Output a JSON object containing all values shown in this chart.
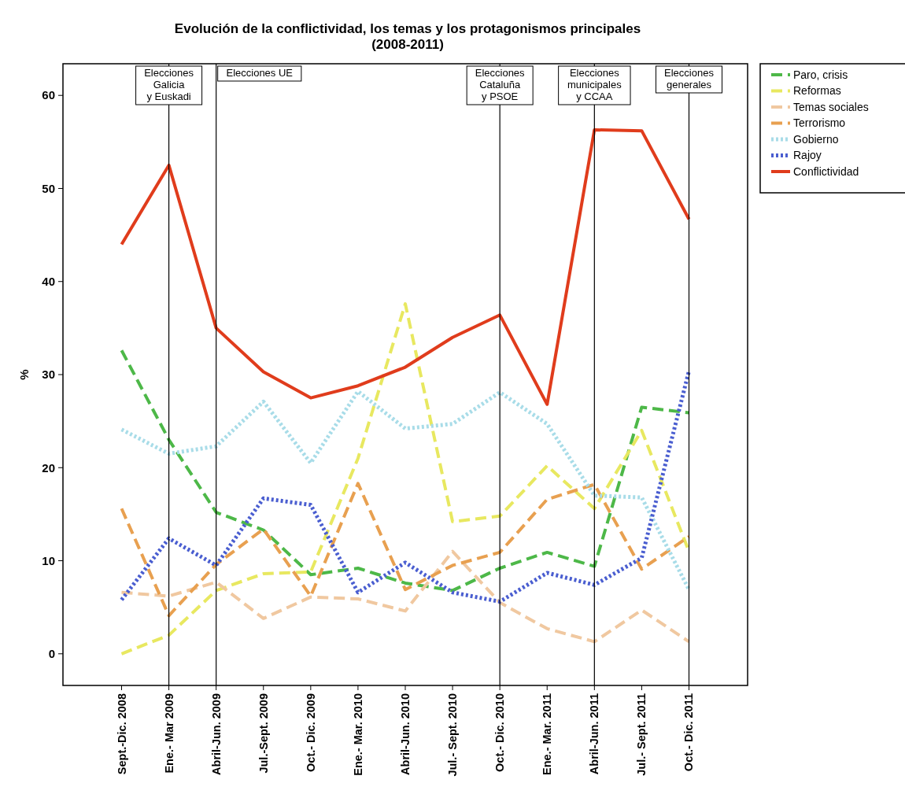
{
  "chart_data": {
    "type": "line",
    "title": "Evolución de la conflictividad, los temas y los protagonismos principales",
    "subtitle": "(2008-2011)",
    "ylabel": "%",
    "categories": [
      "Sept.-Dic. 2008",
      "Ene.- Mar 2009",
      "Abril-Jun. 2009",
      "Jul.-Sept. 2009",
      "Oct.- Dic. 2009",
      "Ene.- Mar. 2010",
      "Abril-Jun. 2010",
      "Jul.- Sept. 2010",
      "Oct.- Dic. 2010",
      "Ene.- Mar. 2011",
      "Abril-Jun. 2011",
      "Jul.- Sept. 2011",
      "Oct.- Dic. 2011"
    ],
    "ylim": [
      -3.4,
      63.4
    ],
    "yticks": [
      0,
      10,
      20,
      30,
      40,
      50,
      60
    ],
    "grid": false,
    "legend": "top right",
    "marker": "none",
    "series": [
      {
        "name": "Paro, crisis",
        "color": "#4db848",
        "line_style": "dashed",
        "values": [
          32.6,
          23,
          15.2,
          13.3,
          8.5,
          9.2,
          7.6,
          6.8,
          9.2,
          10.9,
          9.4,
          26.5,
          25.9
        ]
      },
      {
        "name": "Reformas",
        "color": "#e8e860",
        "line_style": "dashed",
        "values": [
          0,
          2,
          6.8,
          8.6,
          8.8,
          21,
          37.6,
          14.2,
          14.8,
          20.2,
          15.6,
          24,
          11
        ]
      },
      {
        "name": "Temas sociales",
        "color": "#f0c8a0",
        "line_style": "dashed",
        "values": [
          6.6,
          6.2,
          7.7,
          3.8,
          6.1,
          5.9,
          4.6,
          11,
          5.5,
          2.7,
          1.3,
          4.7,
          1.3
        ]
      },
      {
        "name": "Terrorismo",
        "color": "#e8a050",
        "line_style": "dashed",
        "values": [
          15.6,
          4.1,
          9.6,
          13.4,
          6.2,
          18.3,
          6.9,
          9.5,
          10.9,
          16.6,
          18.2,
          9.1,
          12.6
        ]
      },
      {
        "name": "Gobierno",
        "color": "#a8dce8",
        "line_style": "dotted",
        "values": [
          24.1,
          21.5,
          22.3,
          27.1,
          20.5,
          28.2,
          24.2,
          24.7,
          28.1,
          24.7,
          17,
          16.8,
          6.9
        ]
      },
      {
        "name": "Rajoy",
        "color": "#4a5ed0",
        "line_style": "dotted",
        "values": [
          5.8,
          12.4,
          9.5,
          16.7,
          16,
          6.6,
          9.8,
          6.6,
          5.6,
          8.7,
          7.4,
          10.3,
          30.4
        ]
      },
      {
        "name": "Conflictividad",
        "color": "#e03c1c",
        "line_style": "solid",
        "values": [
          44,
          52.5,
          35,
          30.3,
          27.5,
          28.8,
          30.8,
          34,
          36.4,
          26.8,
          56.3,
          56.2,
          46.7
        ]
      }
    ],
    "ref_lines": [
      {
        "axis": "x",
        "value": "Ene.- Mar 2009",
        "label": "Elecciones\nGalicia\ny Euskadi",
        "color": "#000000"
      },
      {
        "axis": "x",
        "value": "Abril-Jun. 2009",
        "label": "Elecciones UE",
        "color": "#000000"
      },
      {
        "axis": "x",
        "value": "Oct.- Dic. 2010",
        "label": "Elecciones\nCataluña\ny PSOE",
        "color": "#000000"
      },
      {
        "axis": "x",
        "value": "Abril-Jun. 2011",
        "label": "Elecciones\nmunicipales\ny CCAA",
        "color": "#000000"
      },
      {
        "axis": "x",
        "value": "Oct.- Dic. 2011",
        "label": "Elecciones\ngenerales",
        "color": "#000000"
      }
    ]
  }
}
